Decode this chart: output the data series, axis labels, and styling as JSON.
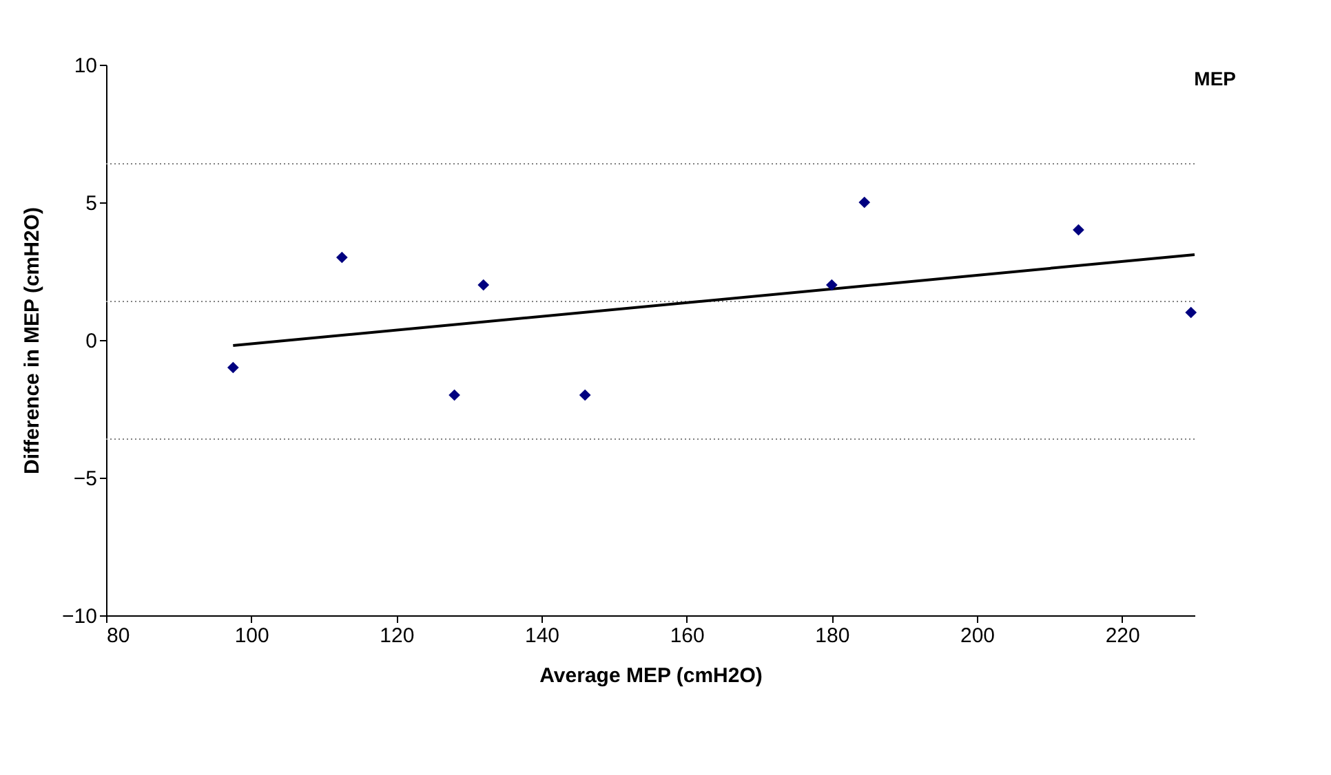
{
  "chart_data": {
    "type": "scatter",
    "xlabel": "Average MEP (cmH2O)",
    "ylabel": "Difference in MEP (cmH2O)",
    "x": [
      97.5,
      112.5,
      128,
      132,
      146,
      180,
      184.5,
      214,
      229.5
    ],
    "series": [
      {
        "color": "#000080",
        "values": [
          -1,
          3,
          -2,
          2,
          -2,
          2,
          5,
          4,
          1
        ],
        "marker": "diamond"
      },
      {
        "type": "line",
        "color": "#000000",
        "x": [
          97.5,
          230
        ],
        "values": [
          -0.2,
          3.1
        ],
        "line_style": "solid"
      }
    ],
    "xlim": [
      80,
      230
    ],
    "xticks": [
      80,
      100,
      120,
      140,
      160,
      180,
      200,
      220
    ],
    "ylim": [
      -10,
      10
    ],
    "yticks": [
      -10,
      -5,
      0,
      5,
      10
    ],
    "ref_lines": [
      {
        "axis": "y",
        "value": 6.4,
        "color": "#808080",
        "line_style": "dotted"
      },
      {
        "axis": "y",
        "value": 1.4,
        "color": "#808080",
        "line_style": "dotted"
      },
      {
        "axis": "y",
        "value": -3.6,
        "color": "#808080",
        "line_style": "dotted"
      }
    ],
    "annotations": [
      "MEP"
    ],
    "grid": false
  }
}
